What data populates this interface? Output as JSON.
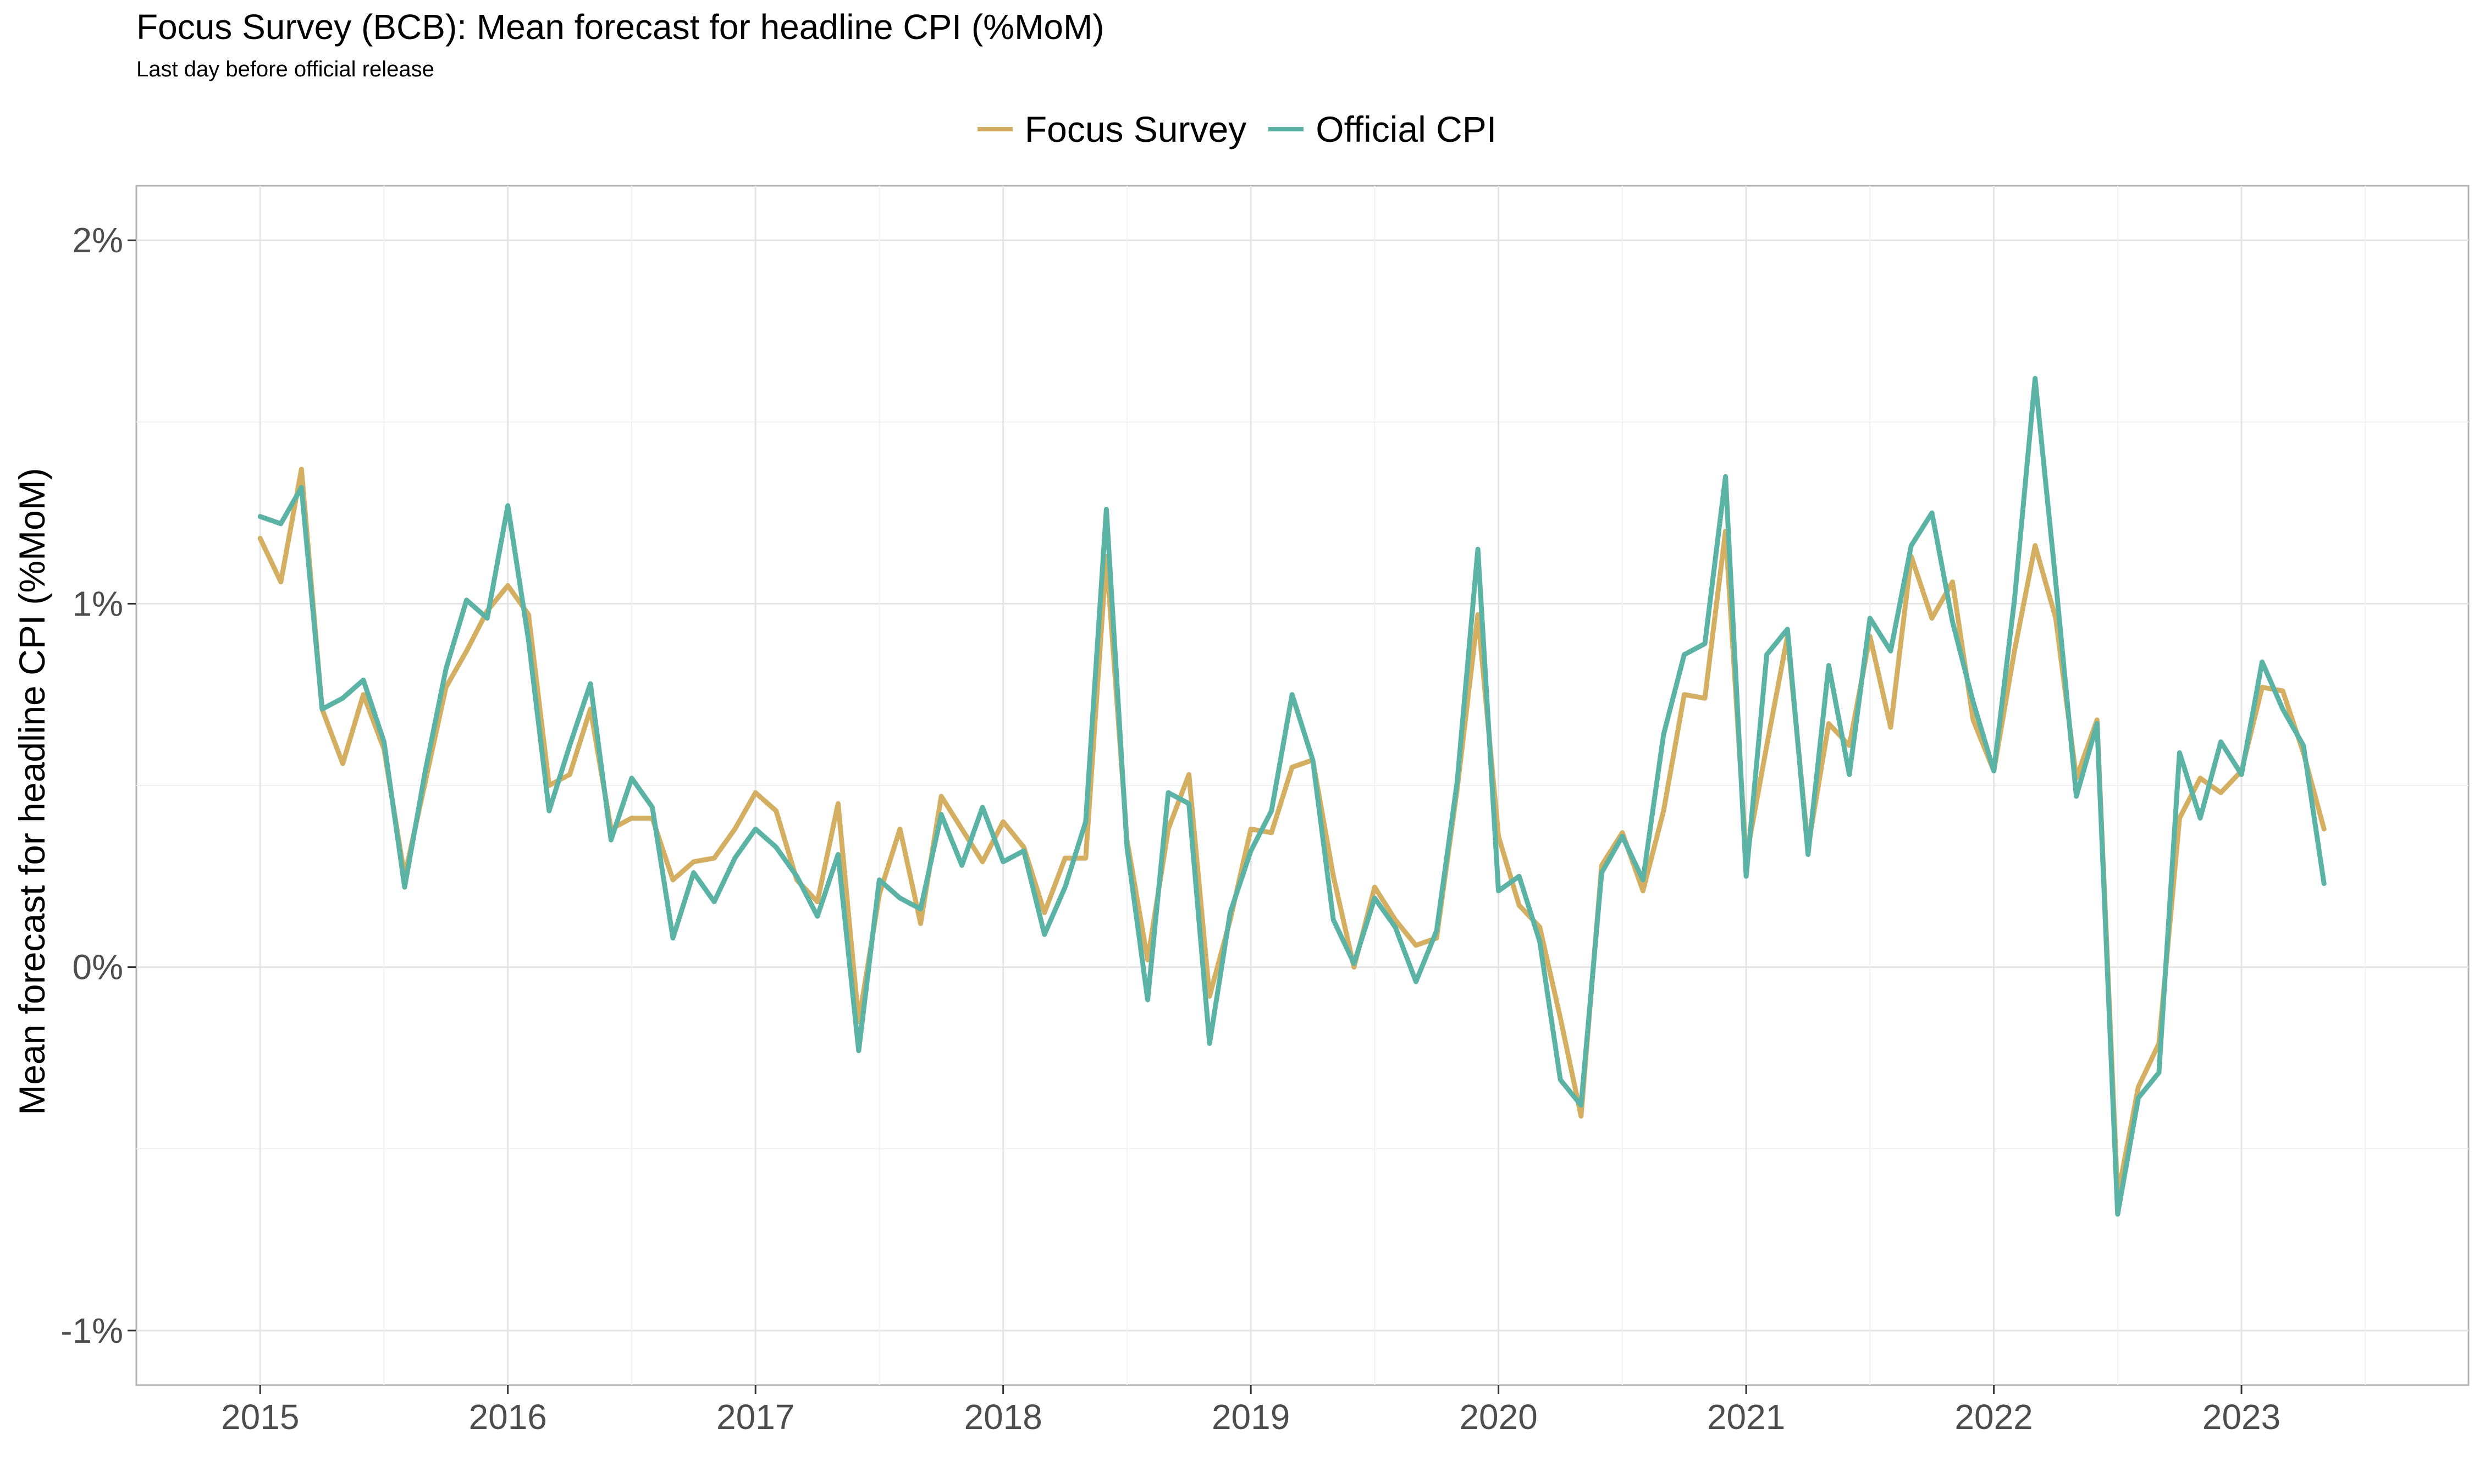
{
  "chart_data": {
    "type": "line",
    "title": "Focus Survey (BCB): Mean forecast for headline CPI (%MoM)",
    "subtitle": "Last day before official release",
    "ylabel": "Mean forecast for headline CPI (%MoM)",
    "xlabel": "",
    "ylim": [
      -1.15,
      2.15
    ],
    "xlim": [
      "2014-07-01",
      "2023-12-01"
    ],
    "y_ticks": [
      -1,
      0,
      1,
      2
    ],
    "y_tick_labels": [
      "-1%",
      "0%",
      "1%",
      "2%"
    ],
    "x_ticks": [
      "2015-01-01",
      "2016-01-01",
      "2017-01-01",
      "2018-01-01",
      "2019-01-01",
      "2020-01-01",
      "2021-01-01",
      "2022-01-01",
      "2023-01-01"
    ],
    "x_tick_labels": [
      "2015",
      "2016",
      "2017",
      "2018",
      "2019",
      "2020",
      "2021",
      "2022",
      "2023"
    ],
    "grid": true,
    "legend": "top-center",
    "x_start": "2015-01",
    "x_frequency": "monthly",
    "series": [
      {
        "name": "Focus Survey",
        "color": "#D4AF61",
        "values": [
          1.18,
          1.06,
          1.37,
          0.71,
          0.56,
          0.75,
          0.6,
          0.25,
          0.51,
          0.77,
          0.87,
          0.98,
          1.05,
          0.97,
          0.5,
          0.53,
          0.71,
          0.38,
          0.41,
          0.41,
          0.24,
          0.29,
          0.3,
          0.38,
          0.48,
          0.43,
          0.24,
          0.18,
          0.45,
          -0.15,
          0.2,
          0.38,
          0.12,
          0.47,
          0.38,
          0.29,
          0.4,
          0.33,
          0.15,
          0.3,
          0.3,
          1.13,
          0.35,
          0.02,
          0.38,
          0.53,
          -0.08,
          0.13,
          0.38,
          0.37,
          0.55,
          0.57,
          0.25,
          0.0,
          0.22,
          0.13,
          0.06,
          0.08,
          0.49,
          0.97,
          0.36,
          0.17,
          0.11,
          -0.14,
          -0.41,
          0.28,
          0.37,
          0.21,
          0.43,
          0.75,
          0.74,
          1.2,
          0.3,
          0.61,
          0.91,
          0.33,
          0.67,
          0.61,
          0.91,
          0.66,
          1.13,
          0.96,
          1.06,
          0.68,
          0.54,
          0.87,
          1.16,
          0.96,
          0.52,
          0.68,
          -0.63,
          -0.33,
          -0.21,
          0.41,
          0.52,
          0.48,
          0.54,
          0.77,
          0.76,
          0.59,
          0.38
        ]
      },
      {
        "name": "Official CPI",
        "color": "#5BB3A6",
        "values": [
          1.24,
          1.22,
          1.32,
          0.71,
          0.74,
          0.79,
          0.62,
          0.22,
          0.54,
          0.82,
          1.01,
          0.96,
          1.27,
          0.9,
          0.43,
          0.61,
          0.78,
          0.35,
          0.52,
          0.44,
          0.08,
          0.26,
          0.18,
          0.3,
          0.38,
          0.33,
          0.25,
          0.14,
          0.31,
          -0.23,
          0.24,
          0.19,
          0.16,
          0.42,
          0.28,
          0.44,
          0.29,
          0.32,
          0.09,
          0.22,
          0.4,
          1.26,
          0.33,
          -0.09,
          0.48,
          0.45,
          -0.21,
          0.15,
          0.32,
          0.43,
          0.75,
          0.57,
          0.13,
          0.01,
          0.19,
          0.11,
          -0.04,
          0.1,
          0.51,
          1.15,
          0.21,
          0.25,
          0.07,
          -0.31,
          -0.38,
          0.26,
          0.36,
          0.24,
          0.64,
          0.86,
          0.89,
          1.35,
          0.25,
          0.86,
          0.93,
          0.31,
          0.83,
          0.53,
          0.96,
          0.87,
          1.16,
          1.25,
          0.95,
          0.73,
          0.54,
          1.01,
          1.62,
          1.06,
          0.47,
          0.67,
          -0.68,
          -0.36,
          -0.29,
          0.59,
          0.41,
          0.62,
          0.53,
          0.84,
          0.71,
          0.61,
          0.23
        ]
      }
    ]
  }
}
